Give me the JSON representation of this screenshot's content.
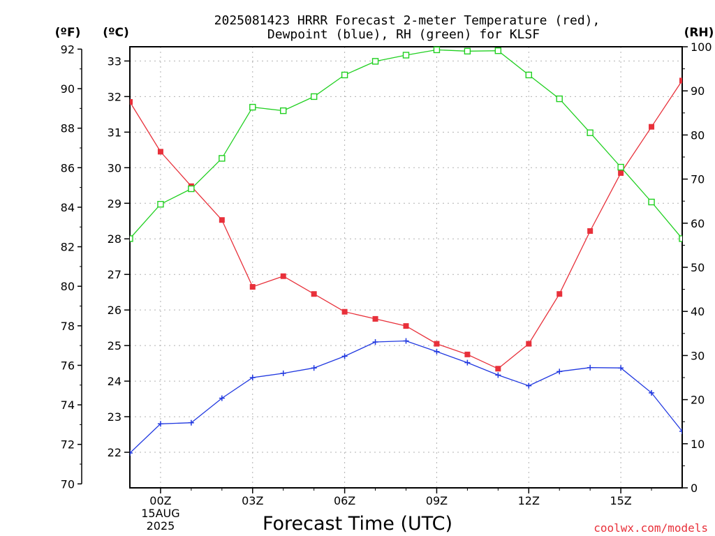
{
  "chart_data": {
    "type": "line",
    "title": [
      "2025081423 HRRR Forecast 2-meter Temperature (red),",
      "Dewpoint (blue), RH (green) for KLSF"
    ],
    "xlabel": "Forecast Time (UTC)",
    "left_outer_unit": "(ºF)",
    "left_inner_unit": "(ºC)",
    "right_unit": "(RH)",
    "credit": "coolwx.com/models",
    "x": [
      -1,
      0,
      1,
      2,
      3,
      4,
      5,
      6,
      7,
      8,
      9,
      10,
      11,
      12,
      13,
      14,
      15,
      16,
      17
    ],
    "x_ticks": [
      {
        "x": 0,
        "label": "00Z",
        "sub": [
          "15AUG",
          "2025"
        ]
      },
      {
        "x": 3,
        "label": "03Z"
      },
      {
        "x": 6,
        "label": "06Z"
      },
      {
        "x": 9,
        "label": "09Z"
      },
      {
        "x": 12,
        "label": "12Z"
      },
      {
        "x": 15,
        "label": "15Z"
      }
    ],
    "xlim": [
      -1,
      17
    ],
    "celsius_ticks": [
      "22",
      "23",
      "24",
      "25",
      "26",
      "27",
      "28",
      "29",
      "30",
      "31",
      "32",
      "33"
    ],
    "fahrenheit_ticks": [
      "70",
      "72",
      "74",
      "76",
      "78",
      "80",
      "82",
      "84",
      "86",
      "88",
      "90",
      "92"
    ],
    "rh_ticks": [
      "0",
      "10",
      "20",
      "30",
      "40",
      "50",
      "60",
      "70",
      "80",
      "90",
      "100"
    ],
    "ylim_celsius": [
      21.0,
      33.4
    ],
    "ylim_rh": [
      0,
      100
    ],
    "grid": true,
    "series": [
      {
        "name": "Temperature (red)",
        "axis": "celsius",
        "color": "#e8303a",
        "marker": "filled-square",
        "values": [
          31.85,
          30.45,
          29.48,
          28.53,
          26.65,
          26.95,
          26.45,
          25.95,
          25.75,
          25.55,
          25.05,
          24.75,
          24.35,
          25.05,
          26.45,
          28.22,
          29.85,
          31.15,
          32.45
        ]
      },
      {
        "name": "Dewpoint (blue)",
        "axis": "celsius",
        "color": "#2038e0",
        "marker": "plus",
        "values": [
          21.98,
          22.8,
          22.83,
          23.52,
          24.1,
          24.22,
          24.37,
          24.7,
          25.1,
          25.13,
          24.83,
          24.52,
          24.17,
          23.87,
          24.27,
          24.38,
          24.37,
          23.67,
          22.59
        ]
      },
      {
        "name": "RH (green)",
        "axis": "rh",
        "color": "#20d020",
        "marker": "open-square",
        "values": [
          56.5,
          64.3,
          67.8,
          74.7,
          86.3,
          85.5,
          88.7,
          93.6,
          96.7,
          98.1,
          99.3,
          99.0,
          99.1,
          93.6,
          88.2,
          80.5,
          72.7,
          64.8,
          56.5
        ]
      }
    ]
  }
}
